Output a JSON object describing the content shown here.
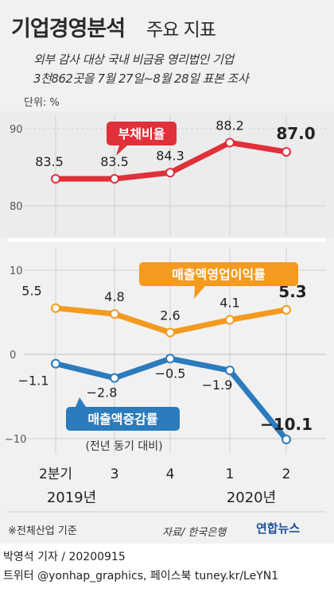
{
  "header": {
    "title_main": "기업경영분석",
    "title_sub": "주요 지표",
    "desc_line1": "외부 감사 대상 국내 비금융 영리법인 기업",
    "desc_line2": "3천862곳을 7월 27일~8월 28일 표본 조사",
    "unit": "단위: %"
  },
  "chart_data": [
    {
      "type": "line",
      "title": "",
      "categories": [
        "2분기",
        "3",
        "4",
        "1",
        "2"
      ],
      "x_groups": [
        "2019년",
        "2020년"
      ],
      "y_ticks": [
        90,
        80
      ],
      "ylim": [
        80,
        90
      ],
      "series": [
        {
          "name": "부채비율",
          "values": [
            83.5,
            83.5,
            84.3,
            88.2,
            87.0
          ],
          "labels": [
            "83.5",
            "83.5",
            "84.3",
            "88.2",
            "87.0"
          ],
          "color": "#e0303a"
        }
      ]
    },
    {
      "type": "line",
      "title": "",
      "categories": [
        "2분기",
        "3",
        "4",
        "1",
        "2"
      ],
      "x_groups": [
        "2019년",
        "2020년"
      ],
      "y_ticks": [
        10,
        0,
        -10
      ],
      "ylim": [
        -10,
        10
      ],
      "series": [
        {
          "name": "매출액영업이익률",
          "values": [
            5.5,
            4.8,
            2.6,
            4.1,
            5.3
          ],
          "labels": [
            "5.5",
            "4.8",
            "2.6",
            "4.1",
            "5.3"
          ],
          "color": "#f39a1f"
        },
        {
          "name": "매출액증감률",
          "note": "(전년 동기 대비)",
          "values": [
            -1.1,
            -2.8,
            -0.5,
            -1.9,
            -10.1
          ],
          "labels": [
            "−1.1",
            "−2.8",
            "−0.5",
            "−1.9",
            "−10.1"
          ],
          "color": "#2b7bbd"
        }
      ]
    }
  ],
  "footer": {
    "footnote": "※전체산업 기준",
    "source": "자료/ 한국은행",
    "brand": "연합뉴스",
    "credit_line1": "박영석 기자 /  20200915",
    "credit_line2": "트위터 @yonhap_graphics, 페이스북 tuney.kr/LeYN1"
  }
}
